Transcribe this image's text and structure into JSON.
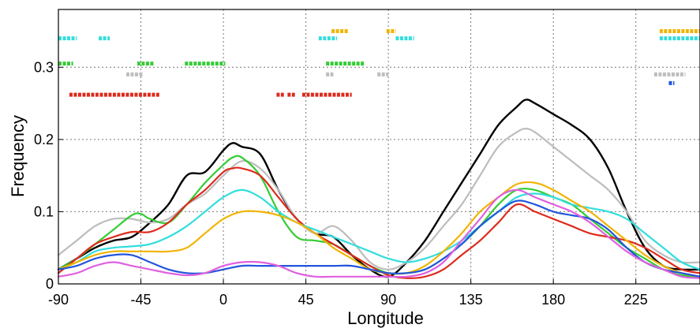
{
  "chart_data": {
    "type": "line",
    "title": "",
    "xlabel": "Longitude",
    "ylabel": "Frequency",
    "xlim": [
      -90,
      260
    ],
    "ylim": [
      0,
      0.38
    ],
    "xticks": [
      -90,
      -45,
      0,
      45,
      90,
      135,
      180,
      225
    ],
    "xtick_labels": [
      "-90",
      "-45",
      "0",
      "45",
      "90",
      "135",
      "180",
      "225"
    ],
    "yticks": [
      0,
      0.1,
      0.2,
      0.3
    ],
    "ytick_labels": [
      "0",
      "0.1",
      "0.2",
      "0.3"
    ],
    "grid": true,
    "legend": false,
    "series": [
      {
        "color": "#000000",
        "x": [
          -90,
          -80,
          -70,
          -60,
          -50,
          -40,
          -30,
          -20,
          -10,
          0,
          5,
          10,
          20,
          30,
          40,
          50,
          60,
          70,
          80,
          90,
          100,
          110,
          120,
          130,
          140,
          150,
          160,
          165,
          170,
          180,
          190,
          200,
          210,
          220,
          230,
          240,
          250,
          260
        ],
        "y": [
          0.02,
          0.035,
          0.05,
          0.06,
          0.065,
          0.085,
          0.11,
          0.15,
          0.155,
          0.185,
          0.195,
          0.19,
          0.18,
          0.13,
          0.09,
          0.07,
          0.065,
          0.04,
          0.02,
          0.01,
          0.03,
          0.06,
          0.1,
          0.14,
          0.18,
          0.22,
          0.245,
          0.255,
          0.25,
          0.235,
          0.22,
          0.2,
          0.16,
          0.1,
          0.05,
          0.025,
          0.02,
          0.02
        ]
      },
      {
        "color": "#bdbdbd",
        "x": [
          -90,
          -80,
          -70,
          -60,
          -50,
          -40,
          -30,
          -20,
          -10,
          0,
          10,
          20,
          30,
          40,
          50,
          60,
          70,
          80,
          90,
          100,
          110,
          120,
          130,
          140,
          150,
          160,
          165,
          170,
          180,
          190,
          200,
          210,
          220,
          230,
          240,
          250,
          260
        ],
        "y": [
          0.04,
          0.06,
          0.08,
          0.09,
          0.09,
          0.085,
          0.09,
          0.11,
          0.125,
          0.15,
          0.17,
          0.16,
          0.13,
          0.09,
          0.07,
          0.08,
          0.06,
          0.03,
          0.02,
          0.03,
          0.05,
          0.08,
          0.11,
          0.15,
          0.19,
          0.21,
          0.215,
          0.21,
          0.19,
          0.17,
          0.15,
          0.13,
          0.1,
          0.06,
          0.04,
          0.03,
          0.03
        ]
      },
      {
        "color": "#33cc33",
        "x": [
          -90,
          -80,
          -70,
          -60,
          -50,
          -45,
          -40,
          -30,
          -20,
          -10,
          0,
          5,
          10,
          20,
          30,
          40,
          50,
          60,
          70,
          80,
          90,
          100,
          110,
          120,
          130,
          140,
          150,
          160,
          170,
          180,
          190,
          200,
          210,
          220,
          230,
          240,
          250,
          260
        ],
        "y": [
          0.02,
          0.035,
          0.055,
          0.075,
          0.095,
          0.097,
          0.09,
          0.085,
          0.11,
          0.14,
          0.165,
          0.175,
          0.175,
          0.15,
          0.1,
          0.065,
          0.06,
          0.055,
          0.04,
          0.025,
          0.015,
          0.015,
          0.02,
          0.035,
          0.055,
          0.08,
          0.11,
          0.13,
          0.13,
          0.12,
          0.11,
          0.09,
          0.07,
          0.05,
          0.035,
          0.02,
          0.012,
          0.01
        ]
      },
      {
        "color": "#dd2a1c",
        "x": [
          -90,
          -80,
          -70,
          -60,
          -50,
          -40,
          -30,
          -20,
          -10,
          0,
          5,
          10,
          20,
          30,
          40,
          50,
          60,
          70,
          80,
          90,
          100,
          110,
          120,
          130,
          140,
          150,
          160,
          170,
          180,
          190,
          200,
          210,
          220,
          230,
          240,
          250,
          260
        ],
        "y": [
          0.015,
          0.035,
          0.055,
          0.065,
          0.072,
          0.072,
          0.085,
          0.11,
          0.13,
          0.155,
          0.16,
          0.16,
          0.15,
          0.12,
          0.09,
          0.07,
          0.055,
          0.04,
          0.025,
          0.012,
          0.008,
          0.01,
          0.02,
          0.04,
          0.06,
          0.085,
          0.11,
          0.1,
          0.09,
          0.08,
          0.07,
          0.065,
          0.06,
          0.05,
          0.035,
          0.02,
          0.015
        ]
      },
      {
        "color": "#33dddd",
        "x": [
          -90,
          -80,
          -70,
          -60,
          -50,
          -40,
          -30,
          -20,
          -10,
          0,
          10,
          20,
          30,
          40,
          50,
          60,
          70,
          80,
          90,
          100,
          110,
          120,
          130,
          140,
          150,
          160,
          170,
          180,
          190,
          200,
          210,
          220,
          230,
          240,
          250,
          260
        ],
        "y": [
          0.02,
          0.03,
          0.045,
          0.05,
          0.052,
          0.055,
          0.065,
          0.08,
          0.1,
          0.12,
          0.13,
          0.12,
          0.1,
          0.085,
          0.075,
          0.065,
          0.055,
          0.045,
          0.035,
          0.03,
          0.035,
          0.045,
          0.06,
          0.08,
          0.1,
          0.12,
          0.125,
          0.12,
          0.11,
          0.105,
          0.1,
          0.09,
          0.07,
          0.05,
          0.03,
          0.02
        ]
      },
      {
        "color": "#f0b400",
        "x": [
          -90,
          -80,
          -70,
          -60,
          -50,
          -40,
          -30,
          -20,
          -10,
          0,
          10,
          20,
          30,
          40,
          50,
          60,
          70,
          80,
          90,
          100,
          110,
          120,
          130,
          140,
          150,
          160,
          170,
          180,
          190,
          200,
          210,
          220,
          230,
          240,
          250,
          260
        ],
        "y": [
          0.02,
          0.03,
          0.04,
          0.045,
          0.045,
          0.045,
          0.045,
          0.05,
          0.07,
          0.09,
          0.1,
          0.1,
          0.095,
          0.085,
          0.07,
          0.05,
          0.035,
          0.02,
          0.015,
          0.015,
          0.025,
          0.045,
          0.07,
          0.1,
          0.12,
          0.138,
          0.14,
          0.13,
          0.115,
          0.1,
          0.08,
          0.06,
          0.04,
          0.025,
          0.015,
          0.01
        ]
      },
      {
        "color": "#2255dd",
        "x": [
          -90,
          -80,
          -70,
          -60,
          -50,
          -40,
          -30,
          -20,
          -10,
          0,
          10,
          20,
          30,
          40,
          50,
          60,
          70,
          80,
          90,
          100,
          110,
          120,
          130,
          140,
          150,
          160,
          170,
          180,
          190,
          200,
          210,
          220,
          230,
          240,
          250,
          260
        ],
        "y": [
          0.02,
          0.025,
          0.035,
          0.04,
          0.04,
          0.03,
          0.02,
          0.015,
          0.015,
          0.02,
          0.025,
          0.025,
          0.025,
          0.025,
          0.025,
          0.025,
          0.025,
          0.02,
          0.015,
          0.015,
          0.02,
          0.035,
          0.055,
          0.08,
          0.1,
          0.115,
          0.11,
          0.1,
          0.095,
          0.09,
          0.075,
          0.05,
          0.03,
          0.02,
          0.015,
          0.01
        ]
      },
      {
        "color": "#e060e0",
        "x": [
          -90,
          -80,
          -70,
          -60,
          -50,
          -40,
          -30,
          -20,
          -10,
          0,
          10,
          20,
          30,
          40,
          50,
          60,
          70,
          80,
          90,
          100,
          110,
          120,
          130,
          140,
          150,
          160,
          170,
          180,
          190,
          200,
          210,
          220,
          230,
          240,
          250,
          260
        ],
        "y": [
          0.01,
          0.015,
          0.025,
          0.03,
          0.025,
          0.02,
          0.015,
          0.012,
          0.015,
          0.025,
          0.03,
          0.03,
          0.025,
          0.015,
          0.01,
          0.01,
          0.01,
          0.01,
          0.01,
          0.01,
          0.015,
          0.03,
          0.06,
          0.09,
          0.12,
          0.13,
          0.12,
          0.11,
          0.1,
          0.085,
          0.065,
          0.045,
          0.03,
          0.02,
          0.01,
          0.008
        ]
      }
    ],
    "markers": [
      {
        "color": "#33dddd",
        "y": 0.34,
        "segments": [
          [
            -90,
            -80
          ],
          [
            -68,
            -62
          ],
          [
            52,
            62
          ],
          [
            94,
            104
          ]
        ]
      },
      {
        "color": "#f0b400",
        "y": 0.35,
        "segments": [
          [
            59,
            68
          ],
          [
            89,
            94
          ]
        ]
      },
      {
        "color": "#33cc33",
        "y": 0.305,
        "segments": [
          [
            -90,
            -82
          ],
          [
            -47,
            -38
          ],
          [
            -21,
            1
          ],
          [
            56,
            77
          ]
        ]
      },
      {
        "color": "#bdbdbd",
        "y": 0.29,
        "segments": [
          [
            -53,
            -44
          ],
          [
            56,
            60
          ],
          [
            84,
            90
          ]
        ]
      },
      {
        "color": "#dd2a1c",
        "y": 0.262,
        "segments": [
          [
            -84,
            -35
          ],
          [
            29,
            33
          ],
          [
            35,
            39
          ],
          [
            43,
            70
          ]
        ]
      },
      {
        "color": "#f0b400",
        "y": 0.35,
        "segments": [
          [
            238,
            260
          ]
        ]
      },
      {
        "color": "#33dddd",
        "y": 0.34,
        "segments": [
          [
            238,
            260
          ]
        ]
      },
      {
        "color": "#bdbdbd",
        "y": 0.29,
        "segments": [
          [
            235,
            252
          ]
        ]
      },
      {
        "color": "#2255dd",
        "y": 0.278,
        "segments": [
          [
            243,
            246
          ]
        ]
      }
    ]
  }
}
